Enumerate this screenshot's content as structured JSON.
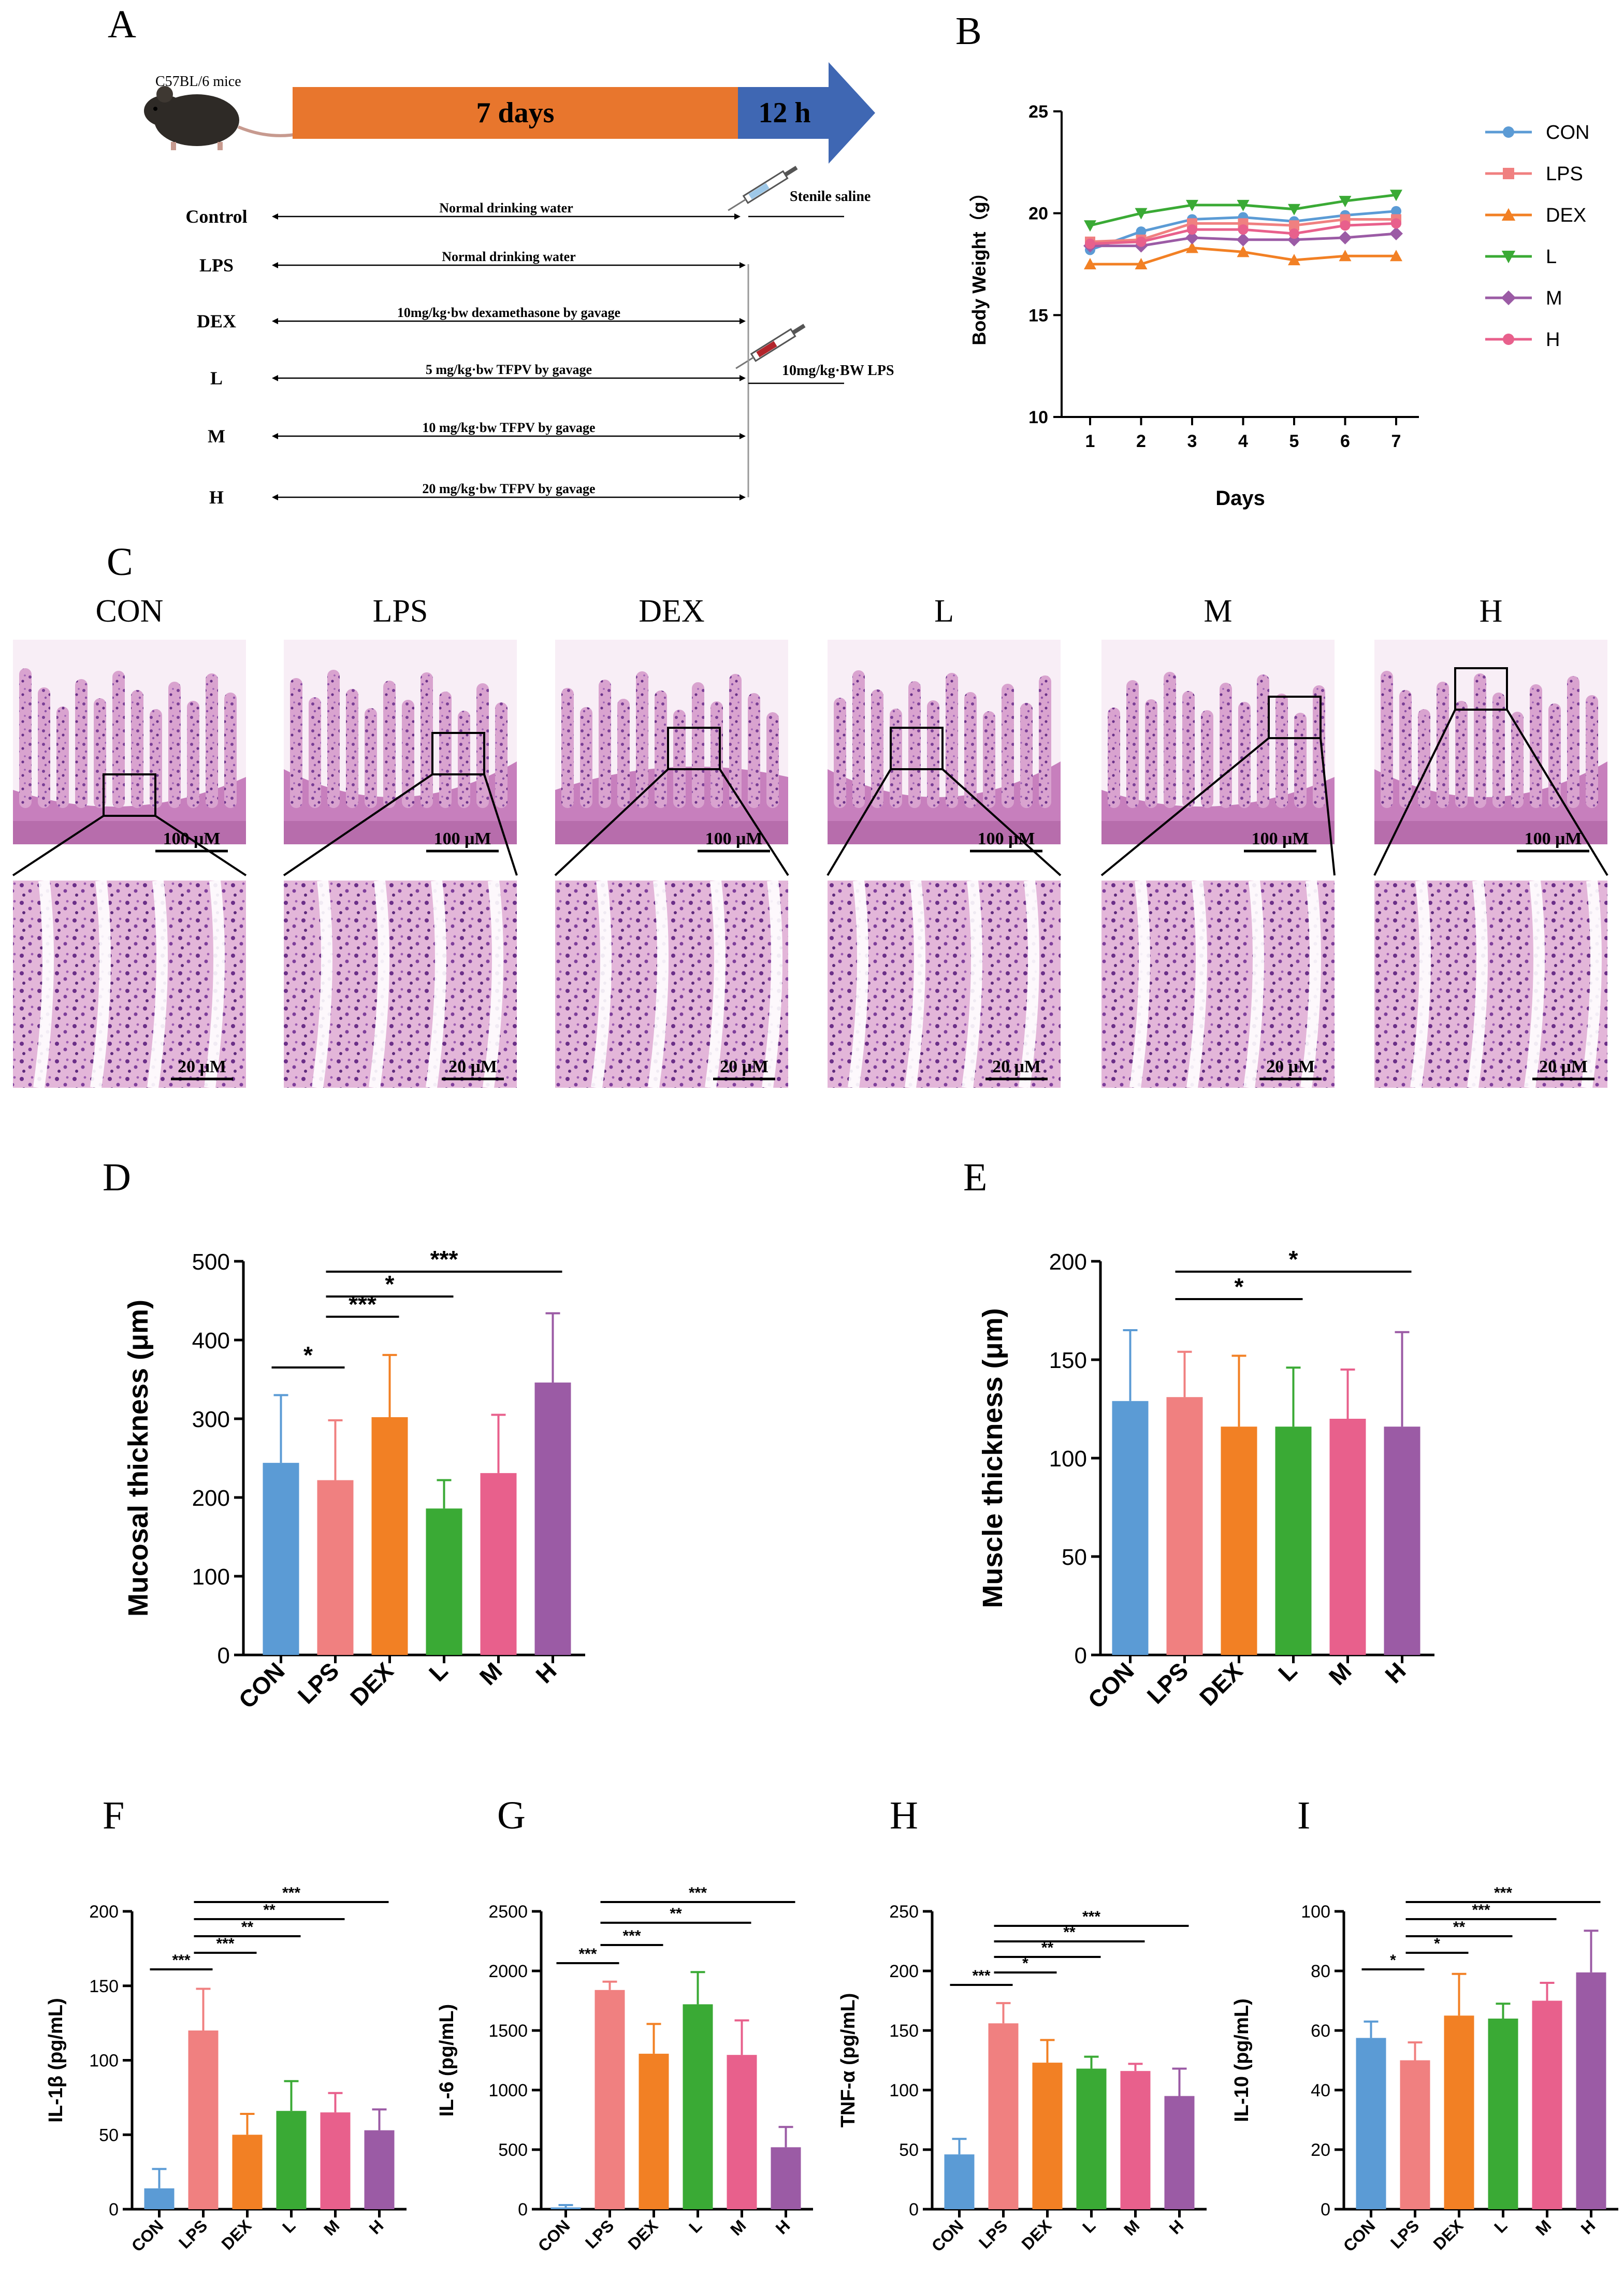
{
  "panels": {
    "A": "A",
    "B": "B",
    "C": "C",
    "D": "D",
    "E": "E",
    "F": "F",
    "G": "G",
    "H": "H",
    "I": "I"
  },
  "panel_a": {
    "mouse_label": "C57BL/6 mice",
    "period_days": "7 days",
    "period_hours": "12 h",
    "saline_label": "Stenile saline",
    "lps_injection_label": "10mg/kg·BW LPS",
    "protocol": [
      {
        "group": "Control",
        "text": "Normal drinking  water"
      },
      {
        "group": "LPS",
        "text": "Normal drinking  water"
      },
      {
        "group": "DEX",
        "text": "10mg/kg·bw dexamethasone by gavage"
      },
      {
        "group": "L",
        "text": "5 mg/kg·bw TFPV by gavage"
      },
      {
        "group": "M",
        "text": "10 mg/kg·bw TFPV by gavage"
      },
      {
        "group": "H",
        "text": "20 mg/kg·bw TFPV by gavage"
      }
    ],
    "colors": {
      "bar_orange": "#e8762d",
      "bar_blue": "#3f67b3"
    }
  },
  "panel_c": {
    "groups": [
      "CON",
      "LPS",
      "DEX",
      "L",
      "M",
      "H"
    ],
    "scale_top": "100 μM",
    "scale_bottom": "20 μM"
  },
  "group_colors": {
    "CON": "#5b9bd5",
    "LPS": "#f08080",
    "DEX": "#f28024",
    "L": "#3aaa35",
    "M": "#e8608c",
    "H": "#9b5ba5"
  },
  "chart_data": [
    {
      "id": "B",
      "type": "line",
      "xlabel": "Days",
      "ylabel": "Body Weight（g）",
      "x": [
        1,
        2,
        3,
        4,
        5,
        6,
        7
      ],
      "xticks": [
        "1",
        "2",
        "3",
        "4",
        "5",
        "6",
        "7"
      ],
      "yticks": [
        "10",
        "15",
        "20",
        "25"
      ],
      "ylim": [
        10,
        25
      ],
      "legend": "right",
      "series": [
        {
          "name": "CON",
          "marker": "circle",
          "color": "#5b9bd5",
          "values": [
            18.2,
            19.1,
            19.7,
            19.8,
            19.6,
            19.9,
            20.1
          ]
        },
        {
          "name": "LPS",
          "marker": "square",
          "color": "#f08080",
          "values": [
            18.6,
            18.7,
            19.5,
            19.5,
            19.4,
            19.7,
            19.7
          ]
        },
        {
          "name": "DEX",
          "marker": "triangle-up",
          "color": "#f28024",
          "values": [
            17.5,
            17.5,
            18.3,
            18.1,
            17.7,
            17.9,
            17.9
          ]
        },
        {
          "name": "L",
          "marker": "triangle-down",
          "color": "#3aaa35",
          "values": [
            19.4,
            20.0,
            20.4,
            20.4,
            20.2,
            20.6,
            20.9
          ]
        },
        {
          "name": "M",
          "marker": "diamond",
          "color": "#9b5ba5",
          "values": [
            18.4,
            18.4,
            18.8,
            18.7,
            18.7,
            18.8,
            19.0
          ]
        },
        {
          "name": "H",
          "marker": "circle",
          "color": "#e8608c",
          "values": [
            18.5,
            18.6,
            19.2,
            19.2,
            19.0,
            19.4,
            19.5
          ]
        }
      ]
    },
    {
      "id": "D",
      "type": "bar",
      "ylabel": "Mucosal thickness (μm)",
      "categories": [
        "CON",
        "LPS",
        "DEX",
        "L",
        "M",
        "H"
      ],
      "values": [
        244,
        222,
        302,
        186,
        231,
        346
      ],
      "errors": [
        86,
        76,
        79,
        36,
        74,
        88
      ],
      "yticks": [
        "0",
        "100",
        "200",
        "300",
        "400",
        "500"
      ],
      "ylim": [
        0,
        500
      ],
      "sig": [
        {
          "from": 0,
          "to": 1,
          "label": "*"
        },
        {
          "from": 1,
          "to": 2,
          "label": "***"
        },
        {
          "from": 1,
          "to": 3,
          "label": "*"
        },
        {
          "from": 1,
          "to": 5,
          "label": "***"
        }
      ]
    },
    {
      "id": "E",
      "type": "bar",
      "ylabel": "Muscle thickness (μm)",
      "categories": [
        "CON",
        "LPS",
        "DEX",
        "L",
        "M",
        "H"
      ],
      "values": [
        129,
        131,
        116,
        116,
        120,
        116
      ],
      "errors": [
        36,
        23,
        36,
        30,
        25,
        48
      ],
      "yticks": [
        "0",
        "50",
        "100",
        "150",
        "200"
      ],
      "ylim": [
        0,
        200
      ],
      "sig": [
        {
          "from": 1,
          "to": 3,
          "label": "*"
        },
        {
          "from": 1,
          "to": 5,
          "label": "*"
        }
      ]
    },
    {
      "id": "F",
      "type": "bar",
      "ylabel": "IL-1β (pg/mL)",
      "categories": [
        "CON",
        "LPS",
        "DEX",
        "L",
        "M",
        "H"
      ],
      "values": [
        14,
        120,
        50,
        66,
        65,
        53
      ],
      "errors": [
        13,
        28,
        14,
        20,
        13,
        14
      ],
      "yticks": [
        "0",
        "50",
        "100",
        "150",
        "200"
      ],
      "ylim": [
        0,
        200
      ],
      "sig": [
        {
          "from": 0,
          "to": 1,
          "label": "***"
        },
        {
          "from": 1,
          "to": 2,
          "label": "***"
        },
        {
          "from": 1,
          "to": 3,
          "label": "**"
        },
        {
          "from": 1,
          "to": 4,
          "label": "**"
        },
        {
          "from": 1,
          "to": 5,
          "label": "***"
        }
      ]
    },
    {
      "id": "G",
      "type": "bar",
      "ylabel": "IL-6 (pg/mL)",
      "categories": [
        "CON",
        "LPS",
        "DEX",
        "L",
        "M",
        "H"
      ],
      "values": [
        15,
        1840,
        1305,
        1720,
        1295,
        520
      ],
      "errors": [
        20,
        70,
        250,
        270,
        290,
        170
      ],
      "yticks": [
        "0",
        "500",
        "1000",
        "1500",
        "2000",
        "2500"
      ],
      "ylim": [
        0,
        2500
      ],
      "sig": [
        {
          "from": 0,
          "to": 1,
          "label": "***"
        },
        {
          "from": 1,
          "to": 2,
          "label": "***"
        },
        {
          "from": 1,
          "to": 4,
          "label": "**"
        },
        {
          "from": 1,
          "to": 5,
          "label": "***"
        }
      ]
    },
    {
      "id": "H",
      "type": "bar",
      "ylabel": "TNF-α (pg/mL)",
      "categories": [
        "CON",
        "LPS",
        "DEX",
        "L",
        "M",
        "H"
      ],
      "values": [
        46,
        156,
        123,
        118,
        116,
        95
      ],
      "errors": [
        13,
        17,
        19,
        10,
        6,
        23
      ],
      "yticks": [
        "0",
        "50",
        "100",
        "150",
        "200",
        "250"
      ],
      "ylim": [
        0,
        250
      ],
      "sig": [
        {
          "from": 0,
          "to": 1,
          "label": "***"
        },
        {
          "from": 1,
          "to": 2,
          "label": "*"
        },
        {
          "from": 1,
          "to": 3,
          "label": "**"
        },
        {
          "from": 1,
          "to": 4,
          "label": "**"
        },
        {
          "from": 1,
          "to": 5,
          "label": "***"
        }
      ]
    },
    {
      "id": "I",
      "type": "bar",
      "ylabel": "IL-10 (pg/mL)",
      "categories": [
        "CON",
        "LPS",
        "DEX",
        "L",
        "M",
        "H"
      ],
      "values": [
        57.5,
        50,
        65,
        64,
        70,
        79.5
      ],
      "errors": [
        5.5,
        6,
        14,
        5,
        6,
        14
      ],
      "yticks": [
        "0",
        "20",
        "40",
        "60",
        "80",
        "100"
      ],
      "ylim": [
        0,
        100
      ],
      "sig": [
        {
          "from": 0,
          "to": 1,
          "label": "*"
        },
        {
          "from": 1,
          "to": 2,
          "label": "*"
        },
        {
          "from": 1,
          "to": 3,
          "label": "**"
        },
        {
          "from": 1,
          "to": 4,
          "label": "***"
        },
        {
          "from": 1,
          "to": 5,
          "label": "***"
        }
      ]
    }
  ]
}
